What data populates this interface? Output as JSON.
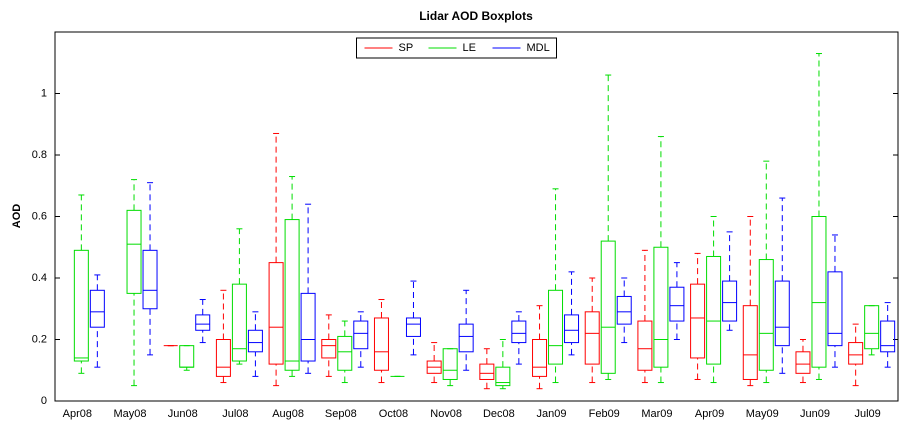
{
  "chart_data": {
    "type": "boxplot",
    "title": "Lidar AOD Boxplots",
    "y_label": "AOD",
    "categories": [
      "Apr08",
      "May08",
      "Jun08",
      "Jul08",
      "Aug08",
      "Sep08",
      "Oct08",
      "Nov08",
      "Dec08",
      "Jan09",
      "Feb09",
      "Mar09",
      "Apr09",
      "May09",
      "Jun09",
      "Jul09"
    ],
    "ylim": [
      0,
      1.2
    ],
    "yticks": [
      0,
      0.2,
      0.4,
      0.6,
      0.8,
      1
    ],
    "grid": false,
    "legend": "north",
    "series": [
      {
        "name": "SP",
        "color": "#ff0000",
        "values": [
          null,
          null,
          {
            "min": 0.18,
            "q1": 0.18,
            "median": 0.18,
            "q3": 0.18,
            "max": 0.18
          },
          {
            "min": 0.06,
            "q1": 0.08,
            "median": 0.11,
            "q3": 0.2,
            "max": 0.36
          },
          {
            "min": 0.05,
            "q1": 0.12,
            "median": 0.24,
            "q3": 0.45,
            "max": 0.87
          },
          {
            "min": 0.08,
            "q1": 0.14,
            "median": 0.18,
            "q3": 0.2,
            "max": 0.28
          },
          {
            "min": 0.06,
            "q1": 0.1,
            "median": 0.16,
            "q3": 0.27,
            "max": 0.33
          },
          {
            "min": 0.06,
            "q1": 0.09,
            "median": 0.11,
            "q3": 0.13,
            "max": 0.19
          },
          {
            "min": 0.04,
            "q1": 0.07,
            "median": 0.09,
            "q3": 0.12,
            "max": 0.17
          },
          {
            "min": 0.04,
            "q1": 0.08,
            "median": 0.11,
            "q3": 0.2,
            "max": 0.31
          },
          {
            "min": 0.06,
            "q1": 0.12,
            "median": 0.22,
            "q3": 0.29,
            "max": 0.4
          },
          {
            "min": 0.06,
            "q1": 0.1,
            "median": 0.17,
            "q3": 0.26,
            "max": 0.49
          },
          {
            "min": 0.07,
            "q1": 0.14,
            "median": 0.27,
            "q3": 0.38,
            "max": 0.48
          },
          {
            "min": 0.05,
            "q1": 0.07,
            "median": 0.15,
            "q3": 0.31,
            "max": 0.6
          },
          {
            "min": 0.06,
            "q1": 0.09,
            "median": 0.12,
            "q3": 0.16,
            "max": 0.2
          },
          {
            "min": 0.05,
            "q1": 0.12,
            "median": 0.15,
            "q3": 0.19,
            "max": 0.25
          }
        ]
      },
      {
        "name": "LE",
        "color": "#00dd00",
        "values": [
          {
            "min": 0.09,
            "q1": 0.13,
            "median": 0.14,
            "q3": 0.49,
            "max": 0.67
          },
          {
            "min": 0.05,
            "q1": 0.35,
            "median": 0.51,
            "q3": 0.62,
            "max": 0.72
          },
          {
            "min": 0.1,
            "q1": 0.11,
            "median": 0.11,
            "q3": 0.18,
            "max": 0.18
          },
          {
            "min": 0.12,
            "q1": 0.13,
            "median": 0.17,
            "q3": 0.38,
            "max": 0.56
          },
          {
            "min": 0.08,
            "q1": 0.1,
            "median": 0.13,
            "q3": 0.59,
            "max": 0.73
          },
          {
            "min": 0.06,
            "q1": 0.1,
            "median": 0.16,
            "q3": 0.21,
            "max": 0.26
          },
          {
            "min": 0.08,
            "q1": 0.08,
            "median": 0.08,
            "q3": 0.08,
            "max": 0.08
          },
          {
            "min": 0.05,
            "q1": 0.07,
            "median": 0.1,
            "q3": 0.17,
            "max": 0.17
          },
          {
            "min": 0.04,
            "q1": 0.05,
            "median": 0.06,
            "q3": 0.11,
            "max": 0.2
          },
          {
            "min": 0.06,
            "q1": 0.12,
            "median": 0.18,
            "q3": 0.36,
            "max": 0.69
          },
          {
            "min": 0.07,
            "q1": 0.09,
            "median": 0.24,
            "q3": 0.52,
            "max": 1.06
          },
          {
            "min": 0.06,
            "q1": 0.11,
            "median": 0.2,
            "q3": 0.5,
            "max": 0.86
          },
          {
            "min": 0.06,
            "q1": 0.12,
            "median": 0.26,
            "q3": 0.47,
            "max": 0.6
          },
          {
            "min": 0.06,
            "q1": 0.1,
            "median": 0.22,
            "q3": 0.46,
            "max": 0.78
          },
          {
            "min": 0.07,
            "q1": 0.11,
            "median": 0.32,
            "q3": 0.6,
            "max": 1.13
          },
          {
            "min": 0.15,
            "q1": 0.17,
            "median": 0.22,
            "q3": 0.31,
            "max": 0.31
          }
        ]
      },
      {
        "name": "MDL",
        "color": "#0000ff",
        "values": [
          {
            "min": 0.11,
            "q1": 0.24,
            "median": 0.29,
            "q3": 0.36,
            "max": 0.41
          },
          {
            "min": 0.15,
            "q1": 0.3,
            "median": 0.36,
            "q3": 0.49,
            "max": 0.71
          },
          {
            "min": 0.19,
            "q1": 0.23,
            "median": 0.25,
            "q3": 0.28,
            "max": 0.33
          },
          {
            "min": 0.08,
            "q1": 0.16,
            "median": 0.19,
            "q3": 0.23,
            "max": 0.29
          },
          {
            "min": 0.09,
            "q1": 0.13,
            "median": 0.2,
            "q3": 0.35,
            "max": 0.64
          },
          {
            "min": 0.11,
            "q1": 0.17,
            "median": 0.22,
            "q3": 0.26,
            "max": 0.29
          },
          {
            "min": 0.15,
            "q1": 0.21,
            "median": 0.25,
            "q3": 0.27,
            "max": 0.39
          },
          {
            "min": 0.1,
            "q1": 0.16,
            "median": 0.21,
            "q3": 0.25,
            "max": 0.36
          },
          {
            "min": 0.12,
            "q1": 0.19,
            "median": 0.22,
            "q3": 0.26,
            "max": 0.29
          },
          {
            "min": 0.15,
            "q1": 0.19,
            "median": 0.23,
            "q3": 0.28,
            "max": 0.42
          },
          {
            "min": 0.19,
            "q1": 0.25,
            "median": 0.29,
            "q3": 0.34,
            "max": 0.4
          },
          {
            "min": 0.2,
            "q1": 0.26,
            "median": 0.31,
            "q3": 0.37,
            "max": 0.45
          },
          {
            "min": 0.23,
            "q1": 0.26,
            "median": 0.32,
            "q3": 0.39,
            "max": 0.55
          },
          {
            "min": 0.09,
            "q1": 0.18,
            "median": 0.24,
            "q3": 0.39,
            "max": 0.66
          },
          {
            "min": 0.11,
            "q1": 0.18,
            "median": 0.22,
            "q3": 0.42,
            "max": 0.54
          },
          {
            "min": 0.11,
            "q1": 0.16,
            "median": 0.18,
            "q3": 0.26,
            "max": 0.32
          }
        ]
      }
    ]
  }
}
